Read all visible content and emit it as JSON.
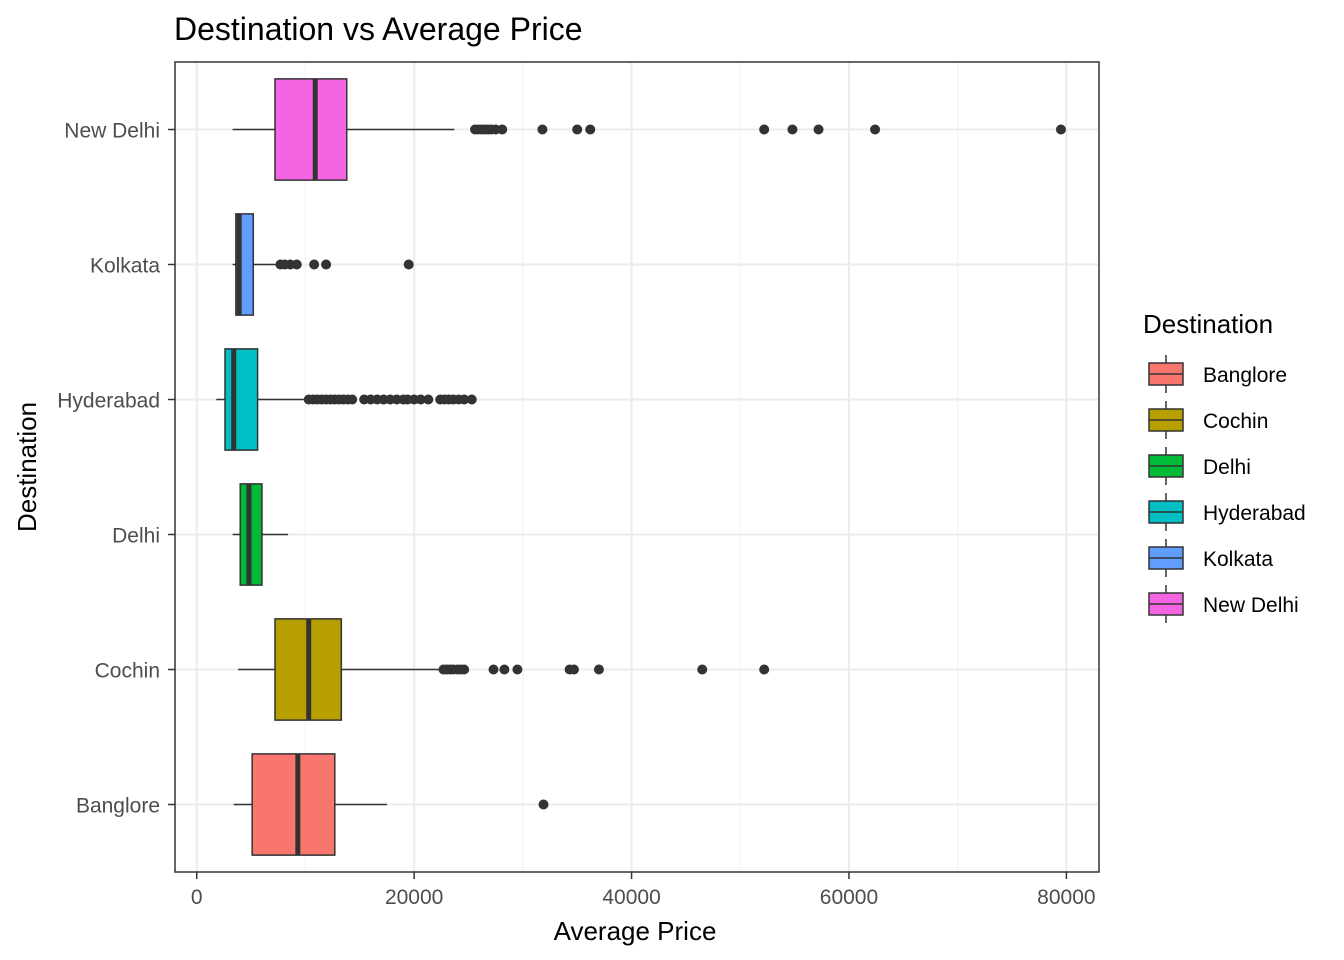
{
  "chart_data": {
    "type": "boxplot",
    "orientation": "horizontal",
    "title": "Destination vs Average Price",
    "xlabel": "Average Price",
    "ylabel": "Destination",
    "xlim": [
      -2000,
      83000
    ],
    "x_ticks": [
      0,
      20000,
      40000,
      60000,
      80000
    ],
    "x_tick_labels": [
      "0",
      "20000",
      "40000",
      "60000",
      "80000"
    ],
    "grid": true,
    "legend": {
      "title": "Destination",
      "position": "right",
      "entries": [
        "Banglore",
        "Cochin",
        "Delhi",
        "Hyderabad",
        "Kolkata",
        "New Delhi"
      ]
    },
    "categories": [
      "Banglore",
      "Cochin",
      "Delhi",
      "Hyderabad",
      "Kolkata",
      "New Delhi"
    ],
    "series": [
      {
        "name": "Banglore",
        "color": "#F8766D",
        "whisker_low": 3400,
        "q1": 5100,
        "median": 9300,
        "q3": 12700,
        "whisker_high": 17500,
        "outliers": [
          31900
        ]
      },
      {
        "name": "Cochin",
        "color": "#B79F00",
        "whisker_low": 3800,
        "q1": 7200,
        "median": 10300,
        "q3": 13300,
        "whisker_high": 22400,
        "outliers": [
          22700,
          23000,
          23300,
          23600,
          24000,
          24300,
          24600,
          27300,
          28300,
          29500,
          34300,
          34700,
          37000,
          46500,
          52200
        ]
      },
      {
        "name": "Delhi",
        "color": "#00BA38",
        "whisker_low": 3300,
        "q1": 4000,
        "median": 4800,
        "q3": 6000,
        "whisker_high": 8400,
        "outliers": []
      },
      {
        "name": "Hyderabad",
        "color": "#00BFC4",
        "whisker_low": 1800,
        "q1": 2600,
        "median": 3400,
        "q3": 5600,
        "whisker_high": 10000,
        "outliers": [
          10300,
          10700,
          11100,
          11500,
          11900,
          12300,
          12700,
          13100,
          13500,
          13900,
          14300,
          15400,
          16000,
          16600,
          17200,
          17800,
          18400,
          19000,
          19400,
          20000,
          20600,
          21300,
          22400,
          22800,
          23200,
          23600,
          24100,
          24600,
          25300
        ]
      },
      {
        "name": "Kolkata",
        "color": "#619CFF",
        "whisker_low": 3300,
        "q1": 3600,
        "median": 3900,
        "q3": 5200,
        "whisker_high": 7300,
        "outliers": [
          7700,
          8100,
          8600,
          9200,
          10800,
          11900,
          19500
        ]
      },
      {
        "name": "New Delhi",
        "color": "#F564E3",
        "whisker_low": 3300,
        "q1": 7200,
        "median": 10900,
        "q3": 13800,
        "whisker_high": 23700,
        "outliers": [
          25600,
          25900,
          26200,
          26500,
          26800,
          27100,
          27500,
          28100,
          31800,
          35000,
          36200,
          52200,
          54800,
          57200,
          62400,
          79500
        ]
      }
    ]
  }
}
